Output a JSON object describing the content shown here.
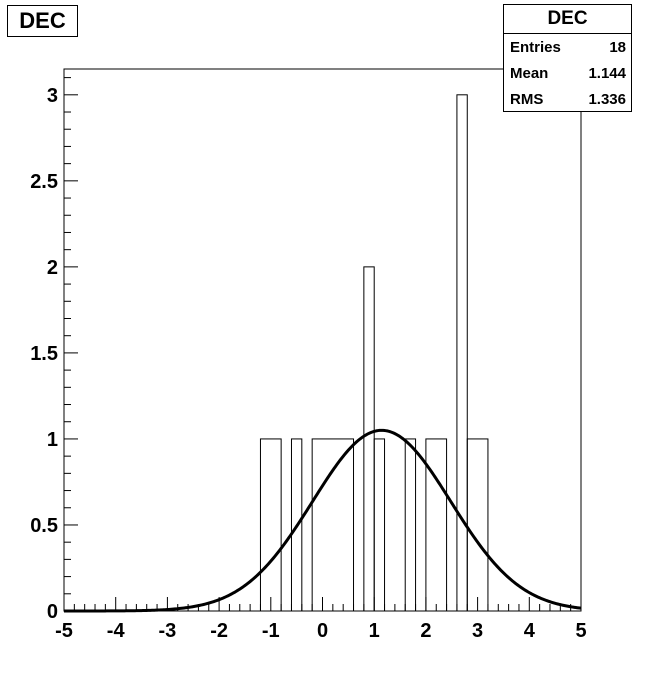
{
  "chart_data": {
    "type": "histogram",
    "title": "DEC",
    "xlim": [
      -5,
      5
    ],
    "ylim": [
      0,
      3.15
    ],
    "x_ticks": [
      "-5",
      "-4",
      "-3",
      "-2",
      "-1",
      "0",
      "1",
      "2",
      "3",
      "4",
      "5"
    ],
    "y_ticks": [
      "0",
      "0.5",
      "1",
      "1.5",
      "2",
      "2.5",
      "3"
    ],
    "bin_width": 0.2,
    "bins": [
      {
        "x0": -1.2,
        "x1": -0.8,
        "count": 1
      },
      {
        "x0": -0.6,
        "x1": -0.4,
        "count": 1
      },
      {
        "x0": -0.2,
        "x1": 0.6,
        "count": 1
      },
      {
        "x0": 0.8,
        "x1": 1.0,
        "count": 2
      },
      {
        "x0": 1.0,
        "x1": 1.2,
        "count": 1
      },
      {
        "x0": 1.6,
        "x1": 1.8,
        "count": 1
      },
      {
        "x0": 2.0,
        "x1": 2.4,
        "count": 1
      },
      {
        "x0": 2.6,
        "x1": 2.8,
        "count": 3
      },
      {
        "x0": 2.8,
        "x1": 3.2,
        "count": 1
      }
    ],
    "fit": {
      "type": "gaussian",
      "amplitude": 1.05,
      "mean": 1.144,
      "sigma": 1.336
    },
    "stats": {
      "title": "DEC",
      "rows": [
        {
          "label": "Entries",
          "value": "18"
        },
        {
          "label": "Mean",
          "value": "1.144"
        },
        {
          "label": "RMS",
          "value": "1.336"
        }
      ]
    }
  }
}
